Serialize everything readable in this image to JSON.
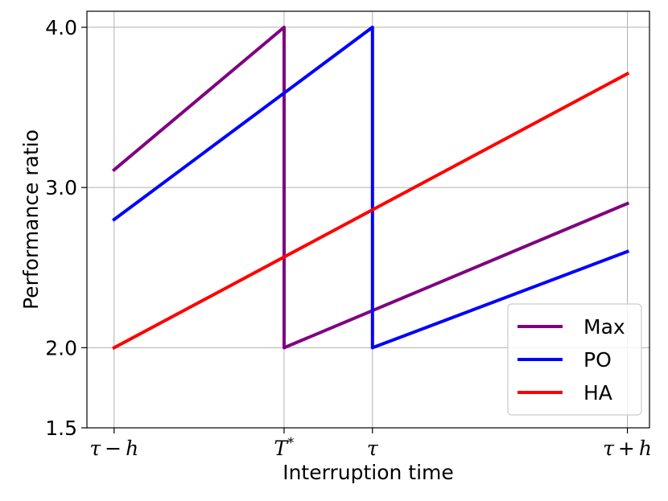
{
  "chart_data": {
    "type": "line",
    "title": "",
    "xlabel": "Interruption time",
    "ylabel": "Performance ratio",
    "x_ticks": [
      {
        "x": 0,
        "label": "τ − h"
      },
      {
        "x": 1,
        "label": "T*"
      },
      {
        "x": 1.52,
        "label": "τ"
      },
      {
        "x": 3.02,
        "label": "τ + h"
      }
    ],
    "y_ticks": [
      1.5,
      2.0,
      3.0,
      4.0
    ],
    "y_tick_labels": [
      "1.5",
      "2.0",
      "3.0",
      "4.0"
    ],
    "xlim": [
      -0.16,
      3.15
    ],
    "ylim": [
      1.5,
      4.1
    ],
    "grid": true,
    "legend_position": "lower-right",
    "series": [
      {
        "name": "Max",
        "color": "#800080",
        "points": [
          [
            0,
            3.11
          ],
          [
            1,
            4.0
          ],
          [
            1,
            2.0
          ],
          [
            3.02,
            2.9
          ]
        ]
      },
      {
        "name": "PO",
        "color": "#0000ff",
        "points": [
          [
            0,
            2.8
          ],
          [
            1.52,
            4.0
          ],
          [
            1.52,
            2.0
          ],
          [
            3.02,
            2.6
          ]
        ]
      },
      {
        "name": "HA",
        "color": "#ff0000",
        "points": [
          [
            0,
            2.0
          ],
          [
            3.02,
            3.71
          ]
        ]
      }
    ]
  }
}
